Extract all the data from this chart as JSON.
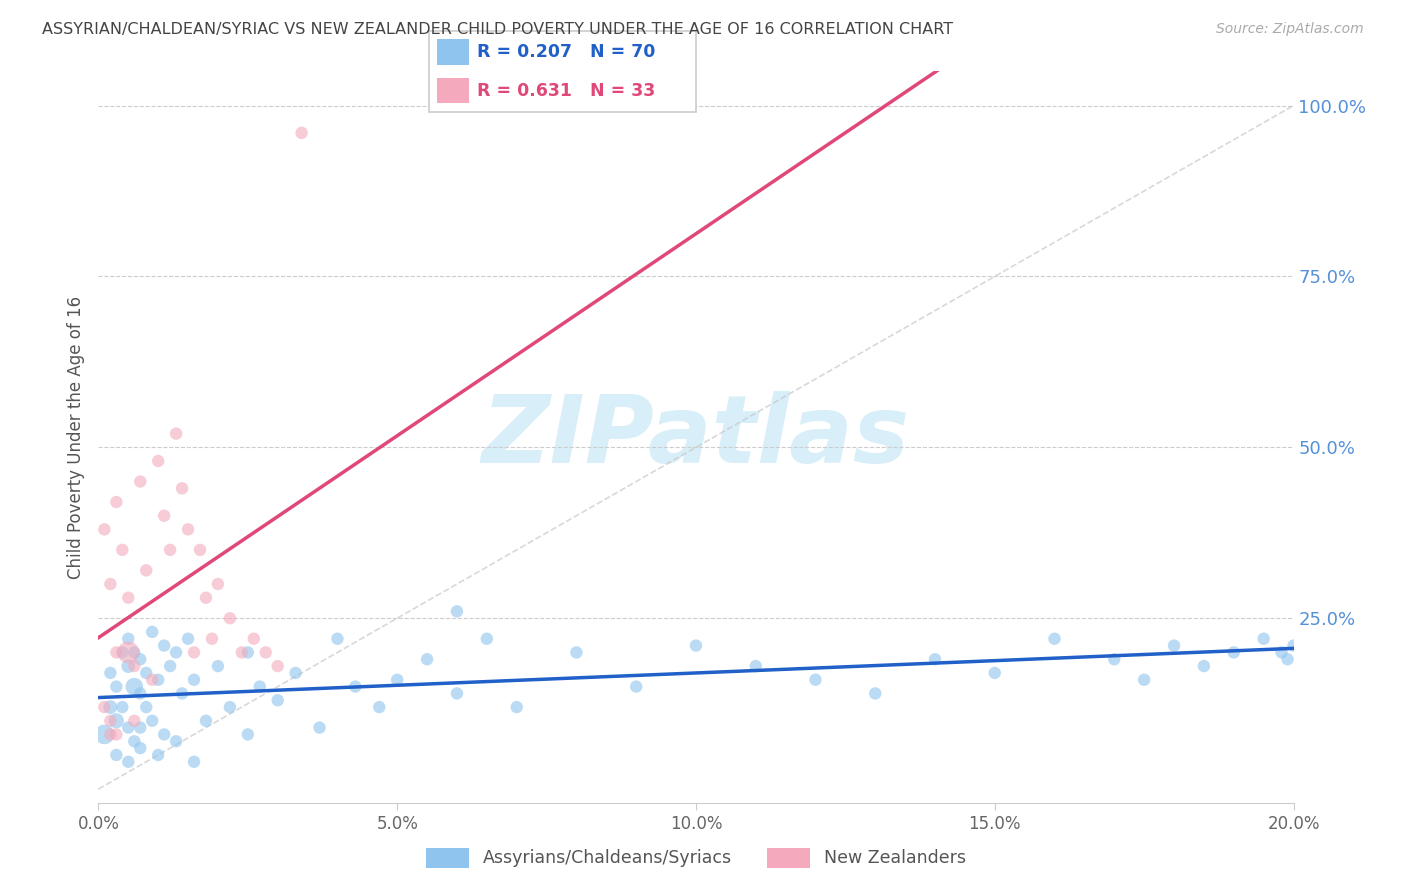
{
  "title": "ASSYRIAN/CHALDEAN/SYRIAC VS NEW ZEALANDER CHILD POVERTY UNDER THE AGE OF 16 CORRELATION CHART",
  "source": "Source: ZipAtlas.com",
  "ylabel": "Child Poverty Under the Age of 16",
  "xlim": [
    0,
    0.2
  ],
  "ylim": [
    -0.02,
    1.05
  ],
  "xticks": [
    0.0,
    0.05,
    0.1,
    0.15,
    0.2
  ],
  "ytick_positions": [
    0.0,
    0.25,
    0.5,
    0.75,
    1.0
  ],
  "ytick_labels": [
    "",
    "25.0%",
    "50.0%",
    "75.0%",
    "100.0%"
  ],
  "xtick_labels": [
    "0.0%",
    "5.0%",
    "10.0%",
    "15.0%",
    "20.0%"
  ],
  "legend1_label": "Assyrians/Chaldeans/Syriacs",
  "legend2_label": "New Zealanders",
  "blue_R": "0.207",
  "blue_N": "70",
  "pink_R": "0.631",
  "pink_N": "33",
  "blue_color": "#8EC4EE",
  "pink_color": "#F4AABC",
  "blue_line_color": "#2060C8",
  "pink_line_color": "#E04878",
  "diag_line_color": "#C8C8C8",
  "title_color": "#444444",
  "source_color": "#AAAAAA",
  "axis_label_color": "#555555",
  "right_tick_color": "#5590D8",
  "watermark_color": "#D8EEF8",
  "blue_scatter_x": [
    0.001,
    0.002,
    0.002,
    0.003,
    0.003,
    0.004,
    0.004,
    0.005,
    0.005,
    0.005,
    0.006,
    0.006,
    0.006,
    0.007,
    0.007,
    0.007,
    0.008,
    0.008,
    0.009,
    0.009,
    0.01,
    0.011,
    0.011,
    0.012,
    0.013,
    0.014,
    0.015,
    0.016,
    0.018,
    0.02,
    0.022,
    0.025,
    0.027,
    0.03,
    0.033,
    0.037,
    0.04,
    0.043,
    0.047,
    0.05,
    0.055,
    0.06,
    0.065,
    0.07,
    0.08,
    0.09,
    0.1,
    0.11,
    0.12,
    0.13,
    0.14,
    0.15,
    0.16,
    0.17,
    0.175,
    0.18,
    0.185,
    0.19,
    0.195,
    0.198,
    0.199,
    0.2,
    0.003,
    0.005,
    0.007,
    0.01,
    0.013,
    0.016,
    0.025,
    0.06
  ],
  "blue_scatter_y": [
    0.08,
    0.12,
    0.17,
    0.1,
    0.15,
    0.12,
    0.2,
    0.18,
    0.09,
    0.22,
    0.15,
    0.2,
    0.07,
    0.14,
    0.09,
    0.19,
    0.12,
    0.17,
    0.1,
    0.23,
    0.16,
    0.21,
    0.08,
    0.18,
    0.2,
    0.14,
    0.22,
    0.16,
    0.1,
    0.18,
    0.12,
    0.2,
    0.15,
    0.13,
    0.17,
    0.09,
    0.22,
    0.15,
    0.12,
    0.16,
    0.19,
    0.14,
    0.22,
    0.12,
    0.2,
    0.15,
    0.21,
    0.18,
    0.16,
    0.14,
    0.19,
    0.17,
    0.22,
    0.19,
    0.16,
    0.21,
    0.18,
    0.2,
    0.22,
    0.2,
    0.19,
    0.21,
    0.05,
    0.04,
    0.06,
    0.05,
    0.07,
    0.04,
    0.08,
    0.26
  ],
  "blue_scatter_size": [
    200,
    100,
    80,
    120,
    80,
    80,
    80,
    100,
    80,
    80,
    160,
    80,
    80,
    80,
    80,
    80,
    80,
    80,
    80,
    80,
    80,
    80,
    80,
    80,
    80,
    80,
    80,
    80,
    80,
    80,
    80,
    80,
    80,
    80,
    80,
    80,
    80,
    80,
    80,
    80,
    80,
    80,
    80,
    80,
    80,
    80,
    80,
    80,
    80,
    80,
    80,
    80,
    80,
    80,
    80,
    80,
    80,
    80,
    80,
    80,
    80,
    80,
    80,
    80,
    80,
    80,
    80,
    80,
    80,
    80
  ],
  "pink_scatter_x": [
    0.001,
    0.001,
    0.002,
    0.002,
    0.003,
    0.003,
    0.004,
    0.005,
    0.005,
    0.006,
    0.006,
    0.007,
    0.008,
    0.009,
    0.01,
    0.011,
    0.012,
    0.013,
    0.014,
    0.015,
    0.016,
    0.017,
    0.018,
    0.019,
    0.02,
    0.022,
    0.024,
    0.026,
    0.028,
    0.03,
    0.002,
    0.003,
    0.034
  ],
  "pink_scatter_y": [
    0.38,
    0.12,
    0.3,
    0.1,
    0.42,
    0.2,
    0.35,
    0.28,
    0.2,
    0.18,
    0.1,
    0.45,
    0.32,
    0.16,
    0.48,
    0.4,
    0.35,
    0.52,
    0.44,
    0.38,
    0.2,
    0.35,
    0.28,
    0.22,
    0.3,
    0.25,
    0.2,
    0.22,
    0.2,
    0.18,
    0.08,
    0.08,
    0.96
  ],
  "pink_scatter_size": [
    80,
    80,
    80,
    80,
    80,
    80,
    80,
    80,
    250,
    80,
    80,
    80,
    80,
    80,
    80,
    80,
    80,
    80,
    80,
    80,
    80,
    80,
    80,
    80,
    80,
    80,
    80,
    80,
    80,
    80,
    80,
    80,
    80
  ]
}
